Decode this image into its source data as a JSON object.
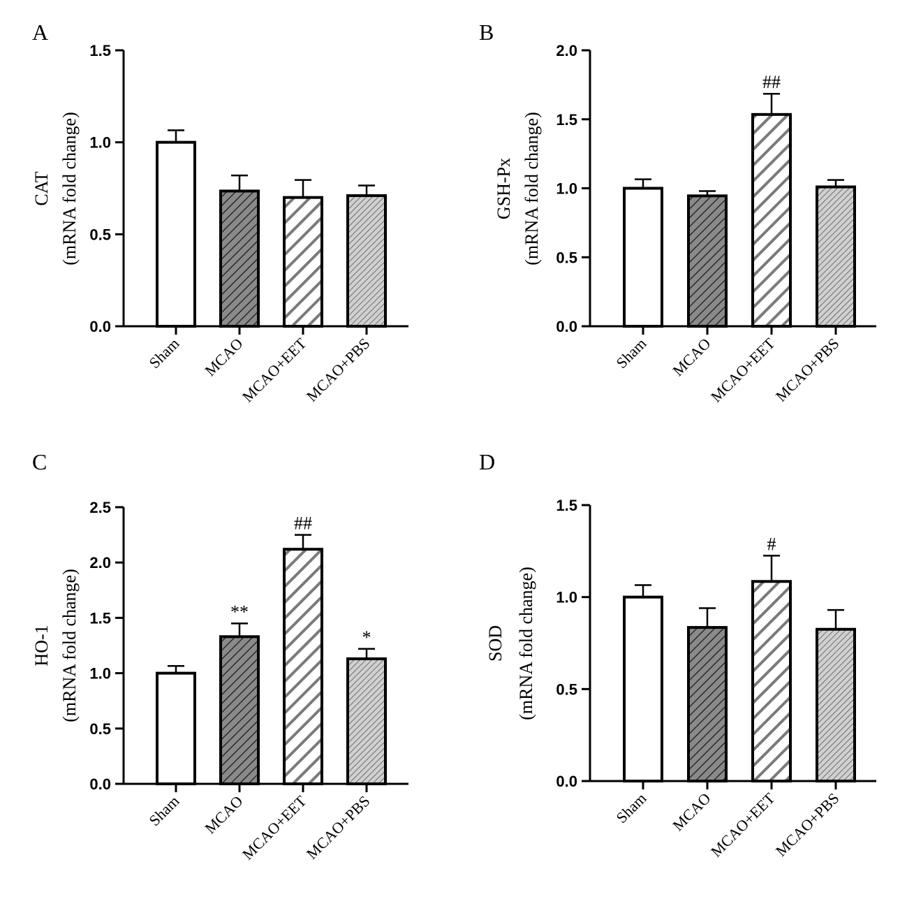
{
  "colors": {
    "stroke": "#000000",
    "hatch": "#808080",
    "background": "#ffffff"
  },
  "chart_data": [
    {
      "panel": "A",
      "type": "bar",
      "categories": [
        "Sham",
        "MCAO",
        "MCAO+EET",
        "MCAO+PBS"
      ],
      "values": [
        1.0,
        0.735,
        0.7,
        0.71
      ],
      "errors": [
        0.065,
        0.085,
        0.095,
        0.055
      ],
      "significance": [
        "",
        "",
        "",
        ""
      ],
      "patterns": [
        "none",
        "dense",
        "wide",
        "fine"
      ],
      "ylabel_line1": "CAT",
      "ylabel_line2": "(mRNA fold change)",
      "ylim": [
        0,
        1.5
      ],
      "yticks": [
        0.0,
        0.5,
        1.0,
        1.5
      ],
      "ytick_labels": [
        "0.0",
        "0.5",
        "1.0",
        "1.5"
      ]
    },
    {
      "panel": "B",
      "type": "bar",
      "categories": [
        "Sham",
        "MCAO",
        "MCAO+EET",
        "MCAO+PBS"
      ],
      "values": [
        1.0,
        0.945,
        1.535,
        1.01
      ],
      "errors": [
        0.065,
        0.035,
        0.15,
        0.05
      ],
      "significance": [
        "",
        "",
        "##",
        ""
      ],
      "patterns": [
        "none",
        "dense",
        "wide",
        "fine"
      ],
      "ylabel_line1": "GSH-Px",
      "ylabel_line2": "(mRNA fold change)",
      "ylim": [
        0,
        2.0
      ],
      "yticks": [
        0.0,
        0.5,
        1.0,
        1.5,
        2.0
      ],
      "ytick_labels": [
        "0.0",
        "0.5",
        "1.0",
        "1.5",
        "2.0"
      ]
    },
    {
      "panel": "C",
      "type": "bar",
      "categories": [
        "Sham",
        "MCAO",
        "MCAO+EET",
        "MCAO+PBS"
      ],
      "values": [
        1.0,
        1.33,
        2.12,
        1.13
      ],
      "errors": [
        0.065,
        0.12,
        0.13,
        0.09
      ],
      "significance": [
        "",
        "**",
        "##",
        "*"
      ],
      "patterns": [
        "none",
        "dense",
        "wide",
        "fine"
      ],
      "ylabel_line1": "HO-1",
      "ylabel_line2": "(mRNA fold change)",
      "ylim": [
        0,
        2.5
      ],
      "yticks": [
        0.0,
        0.5,
        1.0,
        1.5,
        2.0,
        2.5
      ],
      "ytick_labels": [
        "0.0",
        "0.5",
        "1.0",
        "1.5",
        "2.0",
        "2.5"
      ]
    },
    {
      "panel": "D",
      "type": "bar",
      "categories": [
        "Sham",
        "MCAO",
        "MCAO+EET",
        "MCAO+PBS"
      ],
      "values": [
        1.0,
        0.835,
        1.085,
        0.825
      ],
      "errors": [
        0.065,
        0.105,
        0.14,
        0.105
      ],
      "significance": [
        "",
        "",
        "#",
        ""
      ],
      "patterns": [
        "none",
        "dense",
        "wide",
        "fine"
      ],
      "ylabel_line1": "SOD",
      "ylabel_line2": "(mRNA fold change)",
      "ylim": [
        0,
        1.5
      ],
      "yticks": [
        0.0,
        0.5,
        1.0,
        1.5
      ],
      "ytick_labels": [
        "0.0",
        "0.5",
        "1.0",
        "1.5"
      ]
    }
  ]
}
